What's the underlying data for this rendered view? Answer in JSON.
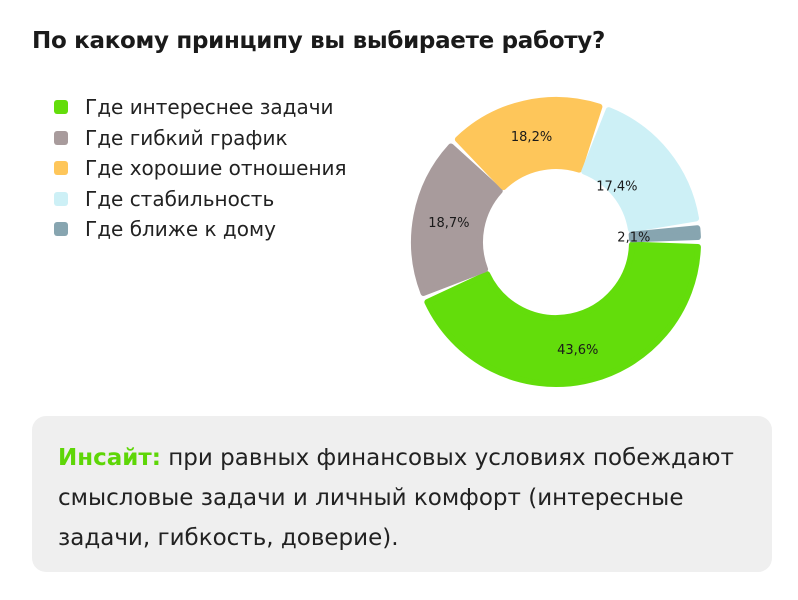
{
  "chart_data": {
    "type": "pie",
    "title": "По какому принципу вы выбираете работу?",
    "categories": [
      "Где интереснее задачи",
      "Где гибкий график",
      "Где хорошие отношения",
      "Где стабильность",
      "Где ближе к дому"
    ],
    "values": [
      43.6,
      18.7,
      18.2,
      17.4,
      2.1
    ],
    "labels": [
      "43,6%",
      "18,7%",
      "18,2%",
      "17,4%",
      "2,1%"
    ],
    "colors": [
      "#63dd0b",
      "#a89b9c",
      "#fec65a",
      "#cdf0f6",
      "#87a5b0"
    ],
    "legend": "top-left"
  },
  "insight": {
    "label": "Инсайт:",
    "text": " при равных финансовых условиях побеждают смысловые задачи и личный комфорт (интересные задачи, гибкость, доверие)."
  }
}
